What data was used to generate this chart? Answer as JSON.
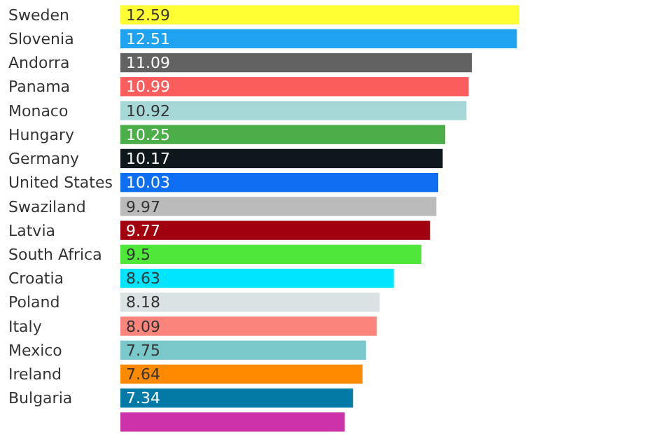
{
  "chart_data": {
    "type": "bar",
    "orientation": "horizontal",
    "xlim": [
      0,
      12.59
    ],
    "categories": [
      "Sweden",
      "Slovenia",
      "Andorra",
      "Panama",
      "Monaco",
      "Hungary",
      "Germany",
      "United States",
      "Swaziland",
      "Latvia",
      "South Africa",
      "Croatia",
      "Poland",
      "Italy",
      "Mexico",
      "Ireland",
      "Bulgaria",
      null
    ],
    "values": [
      12.59,
      12.51,
      11.09,
      10.99,
      10.92,
      10.25,
      10.17,
      10.03,
      9.97,
      9.77,
      9.5,
      8.63,
      8.18,
      8.09,
      7.75,
      7.64,
      7.34,
      7.08
    ],
    "value_labels": [
      "12.59",
      "12.51",
      "11.09",
      "10.99",
      "10.92",
      "10.25",
      "10.17",
      "10.03",
      "9.97",
      "9.77",
      "9.5",
      "8.63",
      "8.18",
      "8.09",
      "7.75",
      "7.64",
      "7.34",
      null
    ],
    "colors": [
      "#ffff33",
      "#1fa3f0",
      "#626262",
      "#fb5c5c",
      "#a6d8d8",
      "#4cae49",
      "#0e171c",
      "#0d6ef2",
      "#bbbbbb",
      "#a1000f",
      "#4ee73a",
      "#00e5ff",
      "#dbe2e4",
      "#fb857c",
      "#7bc8cb",
      "#ff8a00",
      "#0379a6",
      "#cc33aa"
    ]
  }
}
